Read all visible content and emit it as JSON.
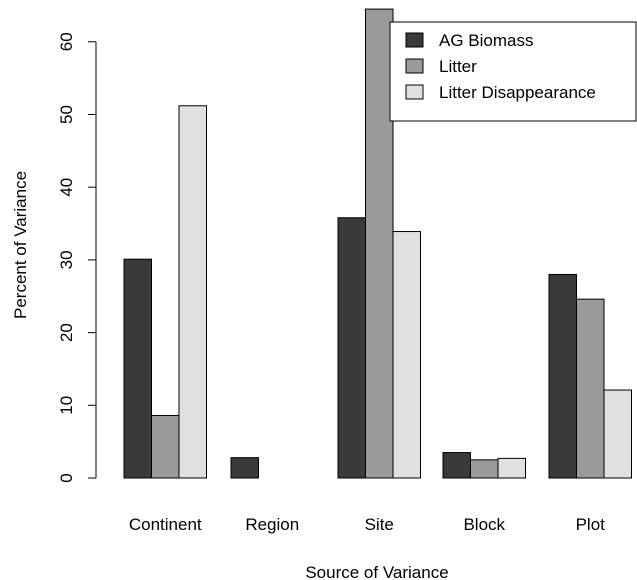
{
  "chart_data": {
    "type": "bar",
    "xlabel": "Source of Variance",
    "ylabel": "Percent of Variance",
    "categories": [
      "Continent",
      "Region",
      "Site",
      "Block",
      "Plot"
    ],
    "y_ticks": [
      "0",
      "10",
      "20",
      "30",
      "40",
      "50",
      "60"
    ],
    "ylim": [
      0,
      65
    ],
    "grid": false,
    "legend_position": "top-right",
    "series": [
      {
        "name": "AG Biomass",
        "color": "#3a3a3a",
        "values": [
          30.1,
          2.8,
          35.8,
          3.5,
          28.0
        ]
      },
      {
        "name": "Litter",
        "color": "#9a9a9a",
        "values": [
          8.6,
          0.0,
          64.5,
          2.5,
          24.6
        ]
      },
      {
        "name": "Litter Disappearance",
        "color": "#e0e0e0",
        "values": [
          51.2,
          0.0,
          33.9,
          2.7,
          12.1
        ]
      }
    ]
  }
}
